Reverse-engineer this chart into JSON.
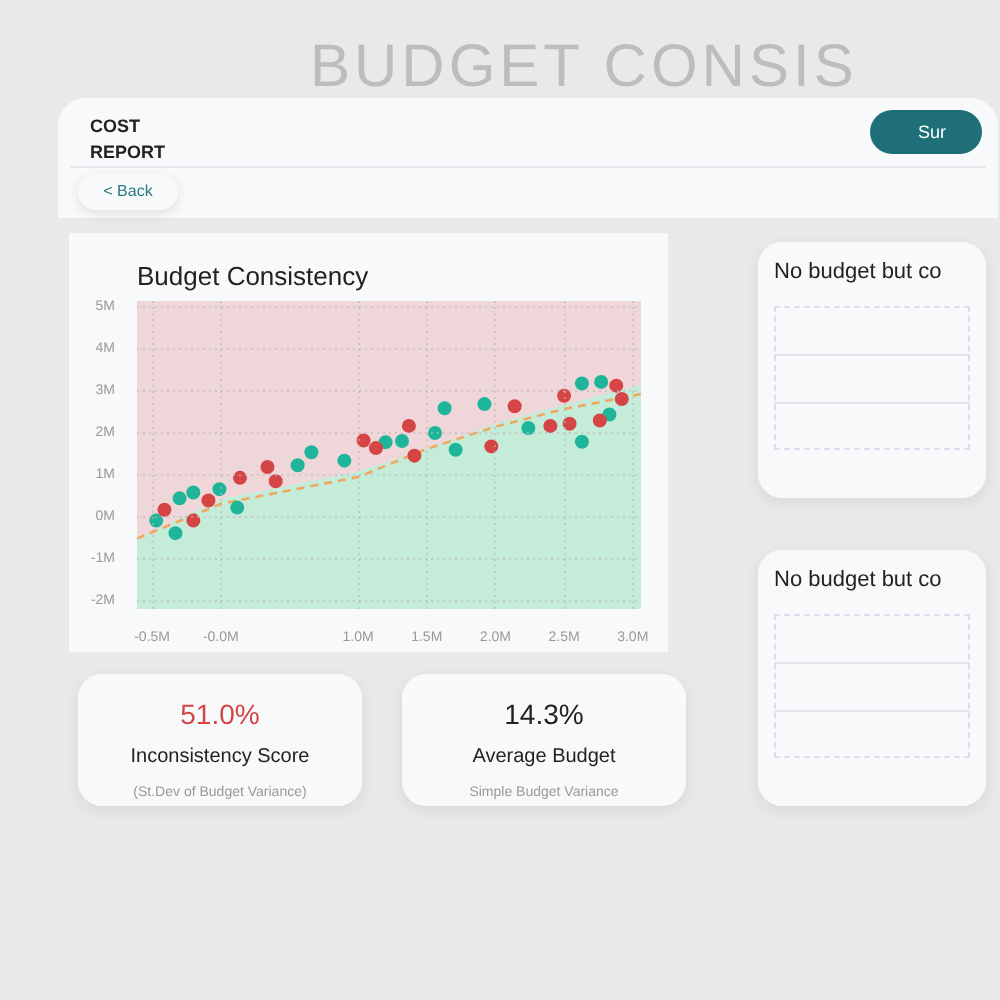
{
  "chart_data": [
    {
      "type": "other",
      "title": "COST REPORT",
      "annotations": [
        "BUDGET CONSIS",
        "< Back",
        "Sur"
      ]
    },
    {
      "type": "scatter",
      "title": "Budget Consistency",
      "grid": true,
      "xlim": [
        -0.61,
        3.06
      ],
      "ylim": [
        -2.2,
        5.15
      ],
      "xticks": [
        {
          "value": -0.5,
          "label": "-0.5M"
        },
        {
          "value": 0.0,
          "label": "-0.0M"
        },
        {
          "value": 1.0,
          "label": "1.0M"
        },
        {
          "value": 1.5,
          "label": "1.5M"
        },
        {
          "value": 2.0,
          "label": "2.0M"
        },
        {
          "value": 2.5,
          "label": "2.5M"
        },
        {
          "value": 3.0,
          "label": "3.0M"
        }
      ],
      "yticks": [
        {
          "value": -2,
          "label": "-2M"
        },
        {
          "value": -1,
          "label": "-1M"
        },
        {
          "value": 0,
          "label": "0M"
        },
        {
          "value": 1,
          "label": "1M"
        },
        {
          "value": 2,
          "label": "2M"
        },
        {
          "value": 3,
          "label": "3M"
        },
        {
          "value": 4,
          "label": "4M"
        },
        {
          "value": 5,
          "label": "5M"
        }
      ],
      "bands": [
        {
          "axis": "y",
          "from": -0.55,
          "to": 5.15,
          "color": "#efd6d8"
        }
      ],
      "series": [
        {
          "type": "area",
          "color": "#c5ecd9",
          "x": [
            -0.61,
            0.0,
            1.0,
            1.5,
            2.0,
            2.5,
            3.06
          ],
          "values": [
            -0.55,
            0.4,
            1.05,
            1.6,
            2.2,
            2.65,
            3.12
          ]
        },
        {
          "type": "line",
          "color": "#f0a860",
          "line_style": "dashed",
          "marker": "none",
          "x": [
            -0.61,
            0.0,
            1.0,
            1.5,
            2.0,
            2.5,
            3.06
          ],
          "values": [
            -0.52,
            0.31,
            0.95,
            1.62,
            2.15,
            2.57,
            2.93
          ]
        },
        {
          "type": "scatter",
          "color": "#1fb59a",
          "marker": "circle",
          "x": [
            -0.47,
            -0.33,
            -0.3,
            -0.2,
            -0.01,
            0.12,
            0.56,
            0.66,
            0.9,
            1.2,
            1.32,
            1.56,
            1.63,
            1.71,
            1.92,
            2.24,
            2.63,
            2.63,
            2.77,
            2.83
          ],
          "values": [
            -0.09,
            -0.39,
            0.44,
            0.58,
            0.66,
            0.22,
            1.23,
            1.54,
            1.34,
            1.78,
            1.81,
            2.0,
            2.59,
            1.6,
            2.69,
            2.12,
            3.18,
            1.79,
            3.22,
            2.44
          ]
        },
        {
          "type": "scatter",
          "color": "#d64545",
          "marker": "circle",
          "x": [
            -0.41,
            -0.2,
            -0.09,
            0.14,
            0.34,
            0.4,
            1.04,
            1.13,
            1.37,
            1.41,
            1.97,
            2.14,
            2.4,
            2.5,
            2.54,
            2.76,
            2.88,
            2.92
          ],
          "values": [
            0.17,
            -0.09,
            0.39,
            0.93,
            1.19,
            0.85,
            1.82,
            1.64,
            2.17,
            1.46,
            1.68,
            2.64,
            2.17,
            2.89,
            2.22,
            2.3,
            3.13,
            2.81
          ]
        }
      ]
    },
    {
      "type": "other",
      "annotations": [
        "51.0%",
        "Inconsistency Score",
        "(St.Dev of Budget Variance)",
        "14.3%",
        "Average Budget",
        "Simple Budget Variance"
      ]
    },
    {
      "type": "other",
      "title": "No budget but co"
    },
    {
      "type": "other",
      "title": "No budget but co"
    }
  ]
}
